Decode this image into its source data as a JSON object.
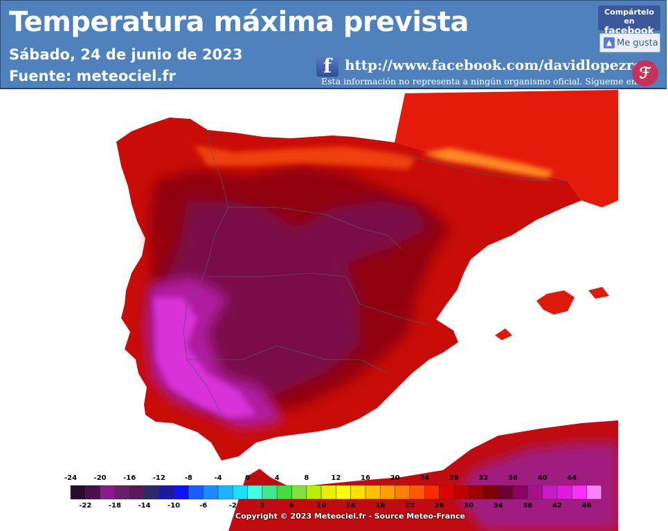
{
  "header": {
    "title": "Temperatura máxima prevista",
    "date": "Sábado, 24 de junio de 2023",
    "source": "Fuente:  meteociel.fr",
    "facebook_url": "http://www.facebook.com/davidlopezrey",
    "disclaimer": "Esta información no representa a ningún organismo oficial. Sígueme en",
    "share_line1": "Compártelo en",
    "share_line2": "facebook",
    "like_label": "Me gusta"
  },
  "legend": {
    "top_labels": [
      "-24",
      "-20",
      "-16",
      "-12",
      "-8",
      "-4",
      "0",
      "4",
      "8",
      "12",
      "16",
      "20",
      "24",
      "28",
      "32",
      "36",
      "40",
      "44"
    ],
    "bottom_labels": [
      "-22",
      "-18",
      "-14",
      "-10",
      "-6",
      "-2",
      "2",
      "6",
      "10",
      "14",
      "18",
      "22",
      "26",
      "30",
      "34",
      "38",
      "42",
      "46"
    ],
    "colors": [
      "#2a0a2e",
      "#4a0f4d",
      "#8a1a8a",
      "#6a1f6a",
      "#5a1a5a",
      "#2a2a6a",
      "#1a1aa0",
      "#1010ff",
      "#1a5aff",
      "#1a8cff",
      "#1ab4ff",
      "#1ae0ff",
      "#40ffe0",
      "#40e890",
      "#40e040",
      "#80e040",
      "#b4f000",
      "#e8f000",
      "#ffff00",
      "#ffe000",
      "#ffc000",
      "#ffa000",
      "#ff8000",
      "#ff5a00",
      "#ff2a00",
      "#e00000",
      "#c00000",
      "#a00000",
      "#800000",
      "#6a0030",
      "#8a0060",
      "#a8108a",
      "#c81ac8",
      "#e01ae0",
      "#ff30ff",
      "#ff80ff"
    ],
    "copyright": "Copyright © 2023 Meteociel.fr - Source Meteo-France"
  }
}
